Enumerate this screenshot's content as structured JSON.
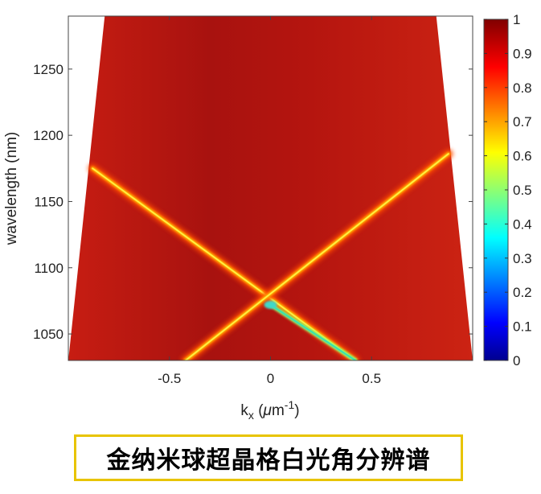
{
  "chart_data": {
    "type": "heatmap",
    "xlabel_main": "k",
    "xlabel_sub": "x",
    "xlabel_unit_open": " (",
    "xlabel_unit_mu": "μ",
    "xlabel_unit_m": "m",
    "xlabel_unit_exp": "-1",
    "xlabel_unit_close": ")",
    "ylabel": "wavelength (nm)",
    "xlim": [
      -1.0,
      1.0
    ],
    "ylim": [
      1030,
      1290
    ],
    "x_ticks": [
      -0.5,
      0,
      0.5
    ],
    "x_tick_labels": [
      "-0.5",
      "0",
      "0.5"
    ],
    "y_ticks": [
      1050,
      1100,
      1150,
      1200,
      1250
    ],
    "y_tick_labels": [
      "1050",
      "1100",
      "1150",
      "1200",
      "1250"
    ],
    "colorbar": {
      "range": [
        0,
        1
      ],
      "ticks": [
        0,
        0.1,
        0.2,
        0.3,
        0.4,
        0.5,
        0.6,
        0.7,
        0.8,
        0.9,
        1
      ],
      "tick_labels": [
        "0",
        "0.1",
        "0.2",
        "0.3",
        "0.4",
        "0.5",
        "0.6",
        "0.7",
        "0.8",
        "0.9",
        "1"
      ],
      "colormap": "jet"
    },
    "background_value": 0.97,
    "data_region": {
      "bottom_k": [
        -1.0,
        1.0
      ],
      "top_k": [
        -0.82,
        0.82
      ]
    },
    "bands": [
      {
        "k_start": -0.88,
        "wl_start": 1175,
        "k_end": 0.42,
        "wl_end": 1030,
        "min_value": 0.5
      },
      {
        "k_start": -0.42,
        "wl_start": 1030,
        "k_end": 0.88,
        "wl_end": 1186,
        "min_value": 0.78
      }
    ],
    "crossing": {
      "k": 0.0,
      "wavelength": 1072,
      "value": 0.5
    }
  },
  "caption": "金纳米球超晶格白光角分辨谱"
}
